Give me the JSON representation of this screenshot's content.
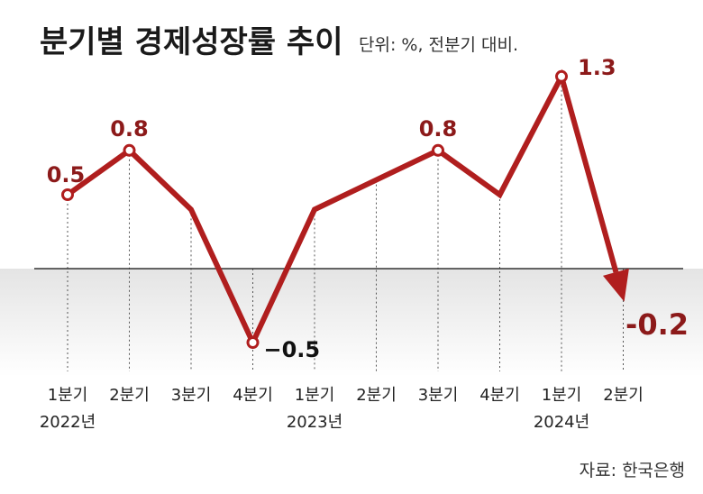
{
  "title": "분기별 경제성장률 추이",
  "unit_note": "단위: %, 전분기 대비.",
  "source": "자료: 한국은행",
  "colors": {
    "line": "#b01e1e",
    "negative_band_top": "#e6e6e6",
    "axis": "#333333"
  },
  "chart_data": {
    "type": "line",
    "title": "분기별 경제성장률 추이",
    "unit": "단위: %, 전분기 대비.",
    "categories": [
      "1분기",
      "2분기",
      "3분기",
      "4분기",
      "1분기",
      "2분기",
      "3분기",
      "4분기",
      "1분기",
      "2분기"
    ],
    "years": [
      {
        "label": "2022년",
        "start_index": 0
      },
      {
        "label": "2023년",
        "start_index": 4
      },
      {
        "label": "2024년",
        "start_index": 8
      }
    ],
    "series": [
      {
        "values": [
          0.5,
          0.8,
          0.4,
          -0.5,
          0.4,
          0.6,
          0.8,
          0.5,
          1.3,
          -0.2
        ]
      }
    ],
    "data_labels": [
      {
        "index": 0,
        "text": "0.5"
      },
      {
        "index": 1,
        "text": "0.8"
      },
      {
        "index": 3,
        "text": "−0.5"
      },
      {
        "index": 6,
        "text": "0.8"
      },
      {
        "index": 8,
        "text": "1.3"
      },
      {
        "index": 9,
        "text": "-0.2"
      }
    ],
    "ylim": [
      -0.7,
      1.4
    ],
    "zero_line": true,
    "grid": false,
    "last_point_arrow": true
  }
}
